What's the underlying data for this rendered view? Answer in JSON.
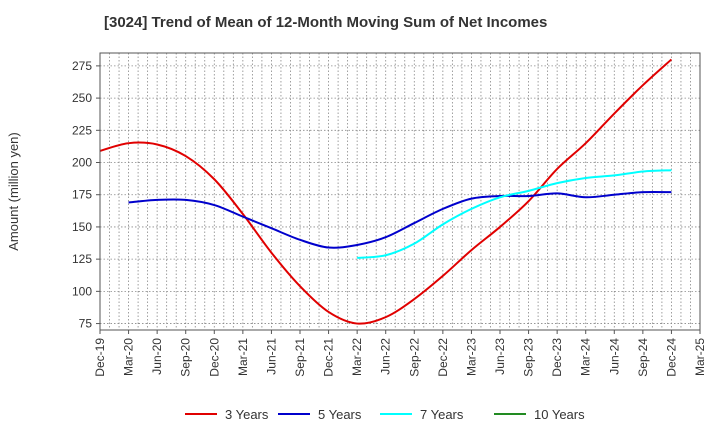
{
  "chart_data": {
    "type": "line",
    "title": "[3024]  Trend of Mean of 12-Month Moving Sum of Net Incomes",
    "ylabel": "Amount (million yen)",
    "xlabel": "",
    "ylim": [
      70,
      285
    ],
    "yticks": [
      75,
      100,
      125,
      150,
      175,
      200,
      225,
      250,
      275
    ],
    "xticks": [
      "Dec-19",
      "Mar-20",
      "Jun-20",
      "Sep-20",
      "Dec-20",
      "Mar-21",
      "Jun-21",
      "Sep-21",
      "Dec-21",
      "Mar-22",
      "Jun-22",
      "Sep-22",
      "Dec-22",
      "Mar-23",
      "Jun-23",
      "Sep-23",
      "Dec-23",
      "Mar-24",
      "Jun-24",
      "Sep-24",
      "Dec-24",
      "Mar-25"
    ],
    "grid": true,
    "legend_position": "bottom",
    "series": [
      {
        "name": "3 Years",
        "color": "#e00000",
        "x": [
          "Dec-19",
          "Mar-20",
          "Jun-20",
          "Sep-20",
          "Dec-20",
          "Mar-21",
          "Jun-21",
          "Sep-21",
          "Dec-21",
          "Mar-22",
          "Jun-22",
          "Sep-22",
          "Dec-22",
          "Mar-23",
          "Jun-23",
          "Sep-23",
          "Dec-23",
          "Mar-24",
          "Jun-24",
          "Sep-24",
          "Dec-24"
        ],
        "values": [
          209,
          215,
          214,
          205,
          187,
          160,
          130,
          104,
          84,
          75,
          80,
          94,
          112,
          132,
          150,
          170,
          195,
          215,
          238,
          260,
          280
        ]
      },
      {
        "name": "5 Years",
        "color": "#0000cc",
        "x": [
          "Mar-20",
          "Jun-20",
          "Sep-20",
          "Dec-20",
          "Mar-21",
          "Jun-21",
          "Sep-21",
          "Dec-21",
          "Mar-22",
          "Jun-22",
          "Sep-22",
          "Dec-22",
          "Mar-23",
          "Jun-23",
          "Sep-23",
          "Dec-23",
          "Mar-24",
          "Jun-24",
          "Sep-24",
          "Dec-24"
        ],
        "values": [
          169,
          171,
          171,
          167,
          158,
          149,
          140,
          134,
          136,
          142,
          153,
          164,
          172,
          174,
          174,
          176,
          173,
          175,
          177,
          177
        ]
      },
      {
        "name": "7 Years",
        "color": "#00ffff",
        "x": [
          "Mar-22",
          "Jun-22",
          "Sep-22",
          "Dec-22",
          "Mar-23",
          "Jun-23",
          "Sep-23",
          "Dec-23",
          "Mar-24",
          "Jun-24",
          "Sep-24",
          "Dec-24"
        ],
        "values": [
          126,
          128,
          137,
          152,
          164,
          173,
          178,
          184,
          188,
          190,
          193,
          194
        ]
      },
      {
        "name": "10 Years",
        "color": "#228b22",
        "x": [],
        "values": []
      }
    ]
  }
}
